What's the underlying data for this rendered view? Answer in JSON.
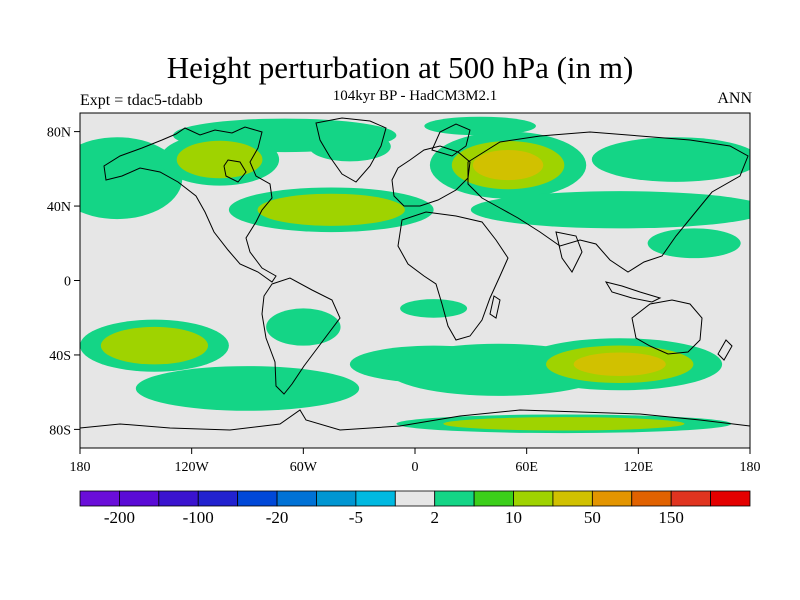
{
  "title": "Height perturbation at 500 hPa (in m)",
  "subtitle": "104kyr BP - HadCM3M2.1",
  "left_label": "Expt = tdac5-tdabb",
  "right_label": "ANN",
  "map": {
    "projection": "cylindrical-equidistant",
    "lon_range": [
      -180,
      180
    ],
    "lat_range": [
      -90,
      90
    ],
    "lat_ticks": [
      {
        "value": 80,
        "label": "80N"
      },
      {
        "value": 40,
        "label": "40N"
      },
      {
        "value": 0,
        "label": "0"
      },
      {
        "value": -40,
        "label": "40S"
      },
      {
        "value": -80,
        "label": "80S"
      }
    ],
    "lon_ticks": [
      {
        "value": -180,
        "label": "180"
      },
      {
        "value": -120,
        "label": "120W"
      },
      {
        "value": -60,
        "label": "60W"
      },
      {
        "value": 0,
        "label": "0"
      },
      {
        "value": 60,
        "label": "60E"
      },
      {
        "value": 120,
        "label": "120E"
      },
      {
        "value": 180,
        "label": "180"
      }
    ],
    "neutral_color": "#e6e6e6",
    "coastline_color": "#000000",
    "anomaly_blobs": [
      {
        "name": "arctic-low",
        "lon": -70,
        "lat": 78,
        "rx": 60,
        "ry": 9,
        "level": 3
      },
      {
        "name": "greenland-low",
        "lon": -35,
        "lat": 72,
        "rx": 22,
        "ry": 8,
        "level": 2
      },
      {
        "name": "barents-low",
        "lon": 35,
        "lat": 83,
        "rx": 30,
        "ry": 5,
        "level": 4
      },
      {
        "name": "n-pacific-low",
        "lon": -160,
        "lat": 55,
        "rx": 35,
        "ry": 22,
        "level": 4
      },
      {
        "name": "canada-high",
        "lon": -105,
        "lat": 65,
        "rx": 32,
        "ry": 14,
        "level": 10
      },
      {
        "name": "n-atlantic-high",
        "lon": -45,
        "lat": 38,
        "rx": 55,
        "ry": 12,
        "level": 10
      },
      {
        "name": "eurasia-high",
        "lon": 50,
        "lat": 62,
        "rx": 42,
        "ry": 18,
        "level": 50
      },
      {
        "name": "siberia-low",
        "lon": 140,
        "lat": 65,
        "rx": 45,
        "ry": 12,
        "level": 4
      },
      {
        "name": "asia-low",
        "lon": 110,
        "lat": 38,
        "rx": 80,
        "ry": 10,
        "level": 4
      },
      {
        "name": "w-pacific-high",
        "lon": 150,
        "lat": 20,
        "rx": 25,
        "ry": 8,
        "level": 2
      },
      {
        "name": "s-pacific-high",
        "lon": -140,
        "lat": -35,
        "rx": 40,
        "ry": 14,
        "level": 10
      },
      {
        "name": "s-america-high",
        "lon": -60,
        "lat": -25,
        "rx": 20,
        "ry": 10,
        "level": 2
      },
      {
        "name": "s-pacific-low",
        "lon": -90,
        "lat": -58,
        "rx": 60,
        "ry": 12,
        "level": 4
      },
      {
        "name": "s-atlantic-high",
        "lon": 10,
        "lat": -45,
        "rx": 45,
        "ry": 10,
        "level": 2
      },
      {
        "name": "s-indian-low",
        "lon": 45,
        "lat": -48,
        "rx": 60,
        "ry": 14,
        "level": 4
      },
      {
        "name": "s-indian-high",
        "lon": 110,
        "lat": -45,
        "rx": 55,
        "ry": 14,
        "level": 50
      },
      {
        "name": "tropical-atlantic-high",
        "lon": 10,
        "lat": -15,
        "rx": 18,
        "ry": 5,
        "level": 2
      },
      {
        "name": "antarctic-high",
        "lon": 80,
        "lat": -77,
        "rx": 90,
        "ry": 5,
        "level": 10
      }
    ]
  },
  "colorbar": {
    "colors": [
      "#6a0ed9",
      "#5a0bd6",
      "#3a13cf",
      "#2222cf",
      "#0048d8",
      "#0072d6",
      "#0096d2",
      "#00b9e1",
      "#e6e6e6",
      "#14d586",
      "#3ccf1a",
      "#9fd300",
      "#d1c100",
      "#e39500",
      "#e16200",
      "#e03420",
      "#e40000"
    ],
    "labels": [
      {
        "text": "-200",
        "boundary": 1
      },
      {
        "text": "-100",
        "boundary": 3
      },
      {
        "text": "-20",
        "boundary": 5
      },
      {
        "text": "-5",
        "boundary": 7
      },
      {
        "text": "2",
        "boundary": 9
      },
      {
        "text": "10",
        "boundary": 11
      },
      {
        "text": "50",
        "boundary": 13
      },
      {
        "text": "150",
        "boundary": 15
      }
    ]
  }
}
